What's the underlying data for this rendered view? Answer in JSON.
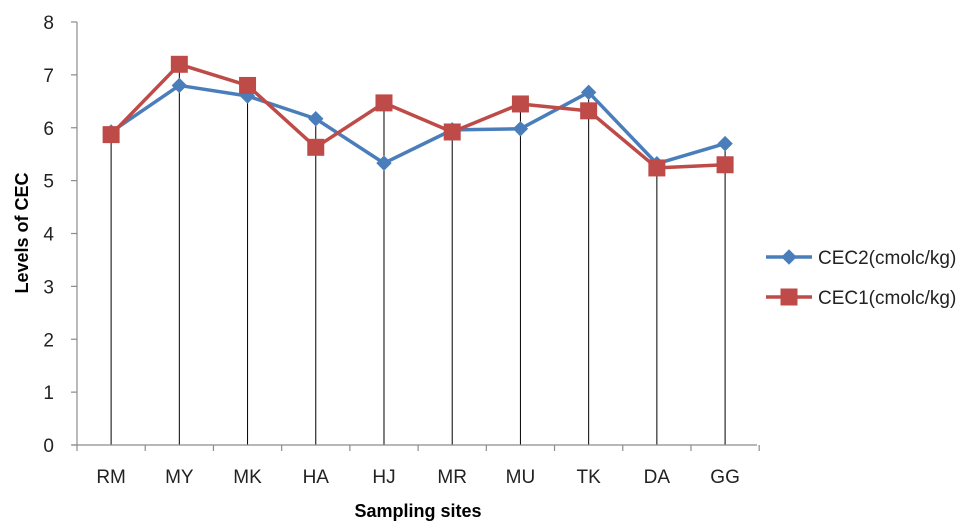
{
  "chart_data": {
    "type": "line",
    "title": "",
    "xlabel": "Sampling sites",
    "ylabel": "Levels of CEC",
    "categories": [
      "RM",
      "MY",
      "MK",
      "HA",
      "HJ",
      "MR",
      "MU",
      "TK",
      "DA",
      "GG"
    ],
    "ylim": [
      0,
      8
    ],
    "yticks": [
      "0",
      "1",
      "2",
      "3",
      "4",
      "5",
      "6",
      "7",
      "8"
    ],
    "grid": false,
    "drop_lines": true,
    "legend_position": "right",
    "series": [
      {
        "name": "CEC2(cmolc/kg)",
        "marker": "diamond",
        "color": "#4a7ebb",
        "values": [
          5.92,
          6.8,
          6.6,
          6.17,
          5.33,
          5.96,
          5.98,
          6.67,
          5.32,
          5.7
        ]
      },
      {
        "name": "CEC1(cmolc/kg)",
        "marker": "square",
        "color": "#be4b48",
        "values": [
          5.87,
          7.2,
          6.8,
          5.63,
          6.47,
          5.92,
          6.45,
          6.32,
          5.24,
          5.3
        ]
      }
    ]
  }
}
